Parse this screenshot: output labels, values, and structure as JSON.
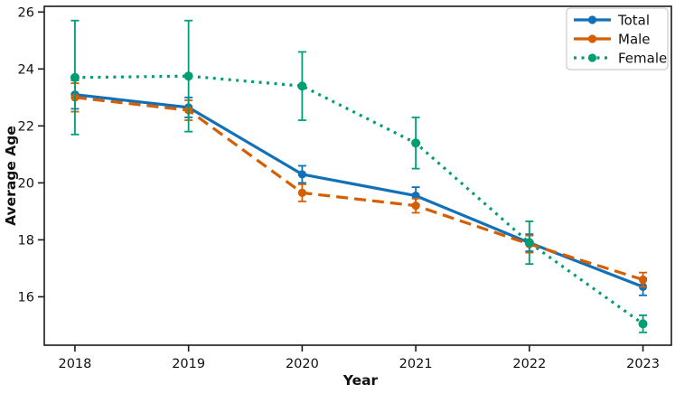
{
  "chart_data": {
    "type": "line",
    "title": "",
    "xlabel": "Year",
    "ylabel": "Average Age",
    "x": [
      2018,
      2019,
      2020,
      2021,
      2022,
      2023
    ],
    "x_tick_labels": [
      "2018",
      "2019",
      "2020",
      "2021",
      "2022",
      "2023"
    ],
    "yticks": [
      16,
      18,
      20,
      22,
      24,
      26
    ],
    "xlim": [
      2017.73,
      2023.25
    ],
    "ylim": [
      14.3,
      26.2
    ],
    "grid": false,
    "legend_position": "upper right",
    "axis_color": "#1a1a1a",
    "text_color": "#111111",
    "series": [
      {
        "name": "Total",
        "color": "#1170b8",
        "linestyle": "solid",
        "marker": "circle",
        "values": [
          23.1,
          22.65,
          20.3,
          19.55,
          17.9,
          16.35
        ],
        "errors": [
          0.5,
          0.35,
          0.3,
          0.3,
          0.3,
          0.3
        ]
      },
      {
        "name": "Male",
        "color": "#d55e00",
        "linestyle": "dashed",
        "marker": "circle",
        "values": [
          23.0,
          22.55,
          19.65,
          19.2,
          17.85,
          16.6
        ],
        "errors": [
          0.5,
          0.35,
          0.3,
          0.25,
          0.3,
          0.25
        ]
      },
      {
        "name": "Female",
        "color": "#029e73",
        "linestyle": "dotted",
        "marker": "circle",
        "values": [
          23.7,
          23.75,
          23.4,
          21.4,
          17.9,
          15.05
        ],
        "errors": [
          2.0,
          1.95,
          1.2,
          0.9,
          0.75,
          0.3
        ]
      }
    ]
  }
}
